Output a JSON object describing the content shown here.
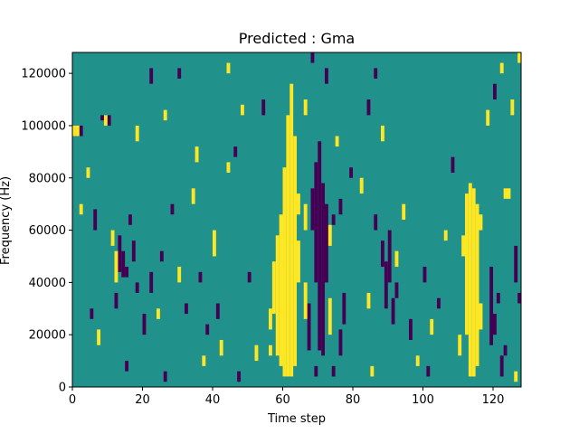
{
  "chart_data": {
    "type": "heatmap",
    "title": "Predicted : Gma",
    "xlabel": "Time step",
    "ylabel": "Frequency (Hz)",
    "xlim": [
      0,
      128
    ],
    "ylim": [
      0,
      128000
    ],
    "xticks": [
      0,
      20,
      40,
      60,
      80,
      100,
      120
    ],
    "yticks": [
      0,
      20000,
      40000,
      60000,
      80000,
      100000,
      120000
    ],
    "grid": false,
    "n_time_steps": 128,
    "n_freq_bins": 64,
    "freq_bin_hz": 2000,
    "background_value": 0,
    "colors": {
      "background": "#21918c",
      "high": "#fde725",
      "low": "#440154"
    },
    "cells": [
      {
        "t": 60,
        "f0": 4000,
        "f1": 84000,
        "value": 1
      },
      {
        "t": 61,
        "f0": 4000,
        "f1": 104000,
        "value": 1
      },
      {
        "t": 62,
        "f0": 4000,
        "f1": 116000,
        "value": 1
      },
      {
        "t": 63,
        "f0": 8000,
        "f1": 96000,
        "value": 1
      },
      {
        "t": 59,
        "f0": 8000,
        "f1": 66000,
        "value": 1
      },
      {
        "t": 58,
        "f0": 12000,
        "f1": 58000,
        "value": 1
      },
      {
        "t": 57,
        "f0": 28000,
        "f1": 48000,
        "value": 1
      },
      {
        "t": 56,
        "f0": 12000,
        "f1": 16000,
        "value": 1
      },
      {
        "t": 56,
        "f0": 22000,
        "f1": 30000,
        "value": 1
      },
      {
        "t": 64,
        "f0": 40000,
        "f1": 56000,
        "value": 1
      },
      {
        "t": 64,
        "f0": 66000,
        "f1": 74000,
        "value": 1
      },
      {
        "t": 113,
        "f0": 4000,
        "f1": 78000,
        "value": 1
      },
      {
        "t": 114,
        "f0": 4000,
        "f1": 76000,
        "value": 1
      },
      {
        "t": 112,
        "f0": 20000,
        "f1": 74000,
        "value": 1
      },
      {
        "t": 115,
        "f0": 8000,
        "f1": 70000,
        "value": 1
      },
      {
        "t": 111,
        "f0": 50000,
        "f1": 58000,
        "value": 1
      },
      {
        "t": 116,
        "f0": 22000,
        "f1": 32000,
        "value": 1
      },
      {
        "t": 116,
        "f0": 60000,
        "f1": 66000,
        "value": 1
      },
      {
        "t": 69,
        "f0": 4000,
        "f1": 8000,
        "value": -1
      },
      {
        "t": 69,
        "f0": 40000,
        "f1": 86000,
        "value": -1
      },
      {
        "t": 70,
        "f0": 14000,
        "f1": 94000,
        "value": -1
      },
      {
        "t": 71,
        "f0": 12000,
        "f1": 78000,
        "value": -1
      },
      {
        "t": 72,
        "f0": 40000,
        "f1": 70000,
        "value": -1
      },
      {
        "t": 68,
        "f0": 60000,
        "f1": 76000,
        "value": -1
      },
      {
        "t": 67,
        "f0": 14000,
        "f1": 32000,
        "value": -1
      },
      {
        "t": 66,
        "f0": 26000,
        "f1": 40000,
        "value": 1
      },
      {
        "t": 66,
        "f0": 60000,
        "f1": 70000,
        "value": 1
      },
      {
        "t": 73,
        "f0": 20000,
        "f1": 34000,
        "value": 1
      },
      {
        "t": 73,
        "f0": 54000,
        "f1": 62000,
        "value": 1
      },
      {
        "t": 76,
        "f0": 12000,
        "f1": 22000,
        "value": -1
      },
      {
        "t": 76,
        "f0": 66000,
        "f1": 72000,
        "value": -1
      },
      {
        "t": 77,
        "f0": 24000,
        "f1": 36000,
        "value": -1
      },
      {
        "t": 74,
        "f0": 62000,
        "f1": 66000,
        "value": -1
      },
      {
        "t": 88,
        "f0": 46000,
        "f1": 56000,
        "value": -1
      },
      {
        "t": 89,
        "f0": 30000,
        "f1": 48000,
        "value": -1
      },
      {
        "t": 90,
        "f0": 40000,
        "f1": 60000,
        "value": -1
      },
      {
        "t": 91,
        "f0": 24000,
        "f1": 34000,
        "value": -1
      },
      {
        "t": 92,
        "f0": 34000,
        "f1": 40000,
        "value": -1
      },
      {
        "t": 92,
        "f0": 46000,
        "f1": 52000,
        "value": 1
      },
      {
        "t": 14,
        "f0": 42000,
        "f1": 52000,
        "value": -1
      },
      {
        "t": 15,
        "f0": 42000,
        "f1": 46000,
        "value": -1
      },
      {
        "t": 13,
        "f0": 44000,
        "f1": 58000,
        "value": -1
      },
      {
        "t": 12,
        "f0": 30000,
        "f1": 36000,
        "value": -1
      },
      {
        "t": 10,
        "f0": 100000,
        "f1": 104000,
        "value": -1
      },
      {
        "t": 9,
        "f0": 100000,
        "f1": 104000,
        "value": 1
      },
      {
        "t": 8,
        "f0": 102000,
        "f1": 104000,
        "value": -1
      },
      {
        "t": 119,
        "f0": 16000,
        "f1": 46000,
        "value": -1
      },
      {
        "t": 120,
        "f0": 20000,
        "f1": 28000,
        "value": -1
      },
      {
        "t": 121,
        "f0": 32000,
        "f1": 36000,
        "value": -1
      },
      {
        "t": 122,
        "f0": 4000,
        "f1": 12000,
        "value": -1
      },
      {
        "t": 123,
        "f0": 12000,
        "f1": 16000,
        "value": -1
      },
      {
        "t": 124,
        "f0": 72000,
        "f1": 76000,
        "value": 1
      },
      {
        "t": 123,
        "f0": 72000,
        "f1": 76000,
        "value": 1
      },
      {
        "t": 127,
        "f0": 32000,
        "f1": 36000,
        "value": -1
      },
      {
        "t": 126,
        "f0": 40000,
        "f1": 54000,
        "value": -1
      },
      {
        "t": 5,
        "f0": 26000,
        "f1": 30000,
        "value": -1
      },
      {
        "t": 6,
        "f0": 60000,
        "f1": 68000,
        "value": -1
      },
      {
        "t": 2,
        "f0": 96000,
        "f1": 100000,
        "value": -1
      },
      {
        "t": 1,
        "f0": 96000,
        "f1": 100000,
        "value": 1
      },
      {
        "t": 0,
        "f0": 96000,
        "f1": 100000,
        "value": 1
      },
      {
        "t": 11,
        "f0": 54000,
        "f1": 60000,
        "value": 1
      },
      {
        "t": 12,
        "f0": 40000,
        "f1": 52000,
        "value": 1
      },
      {
        "t": 16,
        "f0": 62000,
        "f1": 66000,
        "value": -1
      },
      {
        "t": 17,
        "f0": 48000,
        "f1": 56000,
        "value": -1
      },
      {
        "t": 18,
        "f0": 36000,
        "f1": 40000,
        "value": -1
      },
      {
        "t": 20,
        "f0": 20000,
        "f1": 28000,
        "value": -1
      },
      {
        "t": 22,
        "f0": 36000,
        "f1": 44000,
        "value": -1
      },
      {
        "t": 24,
        "f0": 26000,
        "f1": 30000,
        "value": 1
      },
      {
        "t": 25,
        "f0": 48000,
        "f1": 52000,
        "value": -1
      },
      {
        "t": 26,
        "f0": 102000,
        "f1": 106000,
        "value": 1
      },
      {
        "t": 28,
        "f0": 66000,
        "f1": 70000,
        "value": -1
      },
      {
        "t": 30,
        "f0": 40000,
        "f1": 46000,
        "value": 1
      },
      {
        "t": 32,
        "f0": 28000,
        "f1": 32000,
        "value": -1
      },
      {
        "t": 34,
        "f0": 70000,
        "f1": 76000,
        "value": 1
      },
      {
        "t": 35,
        "f0": 86000,
        "f1": 92000,
        "value": 1
      },
      {
        "t": 36,
        "f0": 40000,
        "f1": 44000,
        "value": -1
      },
      {
        "t": 38,
        "f0": 20000,
        "f1": 24000,
        "value": -1
      },
      {
        "t": 40,
        "f0": 50000,
        "f1": 60000,
        "value": 1
      },
      {
        "t": 41,
        "f0": 26000,
        "f1": 32000,
        "value": -1
      },
      {
        "t": 42,
        "f0": 12000,
        "f1": 18000,
        "value": 1
      },
      {
        "t": 44,
        "f0": 82000,
        "f1": 86000,
        "value": 1
      },
      {
        "t": 46,
        "f0": 88000,
        "f1": 92000,
        "value": -1
      },
      {
        "t": 48,
        "f0": 104000,
        "f1": 108000,
        "value": 1
      },
      {
        "t": 50,
        "f0": 40000,
        "f1": 44000,
        "value": -1
      },
      {
        "t": 52,
        "f0": 10000,
        "f1": 16000,
        "value": 1
      },
      {
        "t": 54,
        "f0": 104000,
        "f1": 110000,
        "value": -1
      },
      {
        "t": 79,
        "f0": 80000,
        "f1": 84000,
        "value": -1
      },
      {
        "t": 82,
        "f0": 74000,
        "f1": 80000,
        "value": 1
      },
      {
        "t": 84,
        "f0": 30000,
        "f1": 36000,
        "value": 1
      },
      {
        "t": 86,
        "f0": 60000,
        "f1": 66000,
        "value": -1
      },
      {
        "t": 94,
        "f0": 64000,
        "f1": 70000,
        "value": 1
      },
      {
        "t": 96,
        "f0": 18000,
        "f1": 26000,
        "value": -1
      },
      {
        "t": 98,
        "f0": 8000,
        "f1": 12000,
        "value": 1
      },
      {
        "t": 100,
        "f0": 40000,
        "f1": 46000,
        "value": -1
      },
      {
        "t": 102,
        "f0": 20000,
        "f1": 26000,
        "value": 1
      },
      {
        "t": 104,
        "f0": 30000,
        "f1": 34000,
        "value": -1
      },
      {
        "t": 106,
        "f0": 56000,
        "f1": 60000,
        "value": 1
      },
      {
        "t": 108,
        "f0": 82000,
        "f1": 88000,
        "value": -1
      },
      {
        "t": 110,
        "f0": 12000,
        "f1": 20000,
        "value": 1
      },
      {
        "t": 118,
        "f0": 100000,
        "f1": 106000,
        "value": 1
      },
      {
        "t": 120,
        "f0": 110000,
        "f1": 116000,
        "value": -1
      },
      {
        "t": 122,
        "f0": 120000,
        "f1": 124000,
        "value": 1
      },
      {
        "t": 125,
        "f0": 104000,
        "f1": 110000,
        "value": 1
      },
      {
        "t": 127,
        "f0": 124000,
        "f1": 128000,
        "value": 1
      },
      {
        "t": 86,
        "f0": 118000,
        "f1": 122000,
        "value": -1
      },
      {
        "t": 88,
        "f0": 94000,
        "f1": 100000,
        "value": 1
      },
      {
        "t": 84,
        "f0": 104000,
        "f1": 110000,
        "value": -1
      },
      {
        "t": 75,
        "f0": 92000,
        "f1": 96000,
        "value": 1
      },
      {
        "t": 72,
        "f0": 116000,
        "f1": 122000,
        "value": -1
      },
      {
        "t": 68,
        "f0": 124000,
        "f1": 128000,
        "value": -1
      },
      {
        "t": 66,
        "f0": 104000,
        "f1": 110000,
        "value": 1
      },
      {
        "t": 44,
        "f0": 120000,
        "f1": 124000,
        "value": 1
      },
      {
        "t": 30,
        "f0": 118000,
        "f1": 122000,
        "value": -1
      },
      {
        "t": 18,
        "f0": 94000,
        "f1": 100000,
        "value": 1
      },
      {
        "t": 22,
        "f0": 116000,
        "f1": 122000,
        "value": -1
      },
      {
        "t": 4,
        "f0": 80000,
        "f1": 84000,
        "value": 1
      },
      {
        "t": 2,
        "f0": 66000,
        "f1": 70000,
        "value": 1
      },
      {
        "t": 7,
        "f0": 16000,
        "f1": 22000,
        "value": 1
      },
      {
        "t": 15,
        "f0": 6000,
        "f1": 10000,
        "value": -1
      },
      {
        "t": 26,
        "f0": 2000,
        "f1": 6000,
        "value": -1
      },
      {
        "t": 37,
        "f0": 8000,
        "f1": 12000,
        "value": 1
      },
      {
        "t": 47,
        "f0": 2000,
        "f1": 6000,
        "value": -1
      },
      {
        "t": 74,
        "f0": 4000,
        "f1": 8000,
        "value": -1
      },
      {
        "t": 85,
        "f0": 4000,
        "f1": 8000,
        "value": 1
      },
      {
        "t": 101,
        "f0": 4000,
        "f1": 8000,
        "value": -1
      },
      {
        "t": 126,
        "f0": 2000,
        "f1": 6000,
        "value": 1
      }
    ]
  }
}
